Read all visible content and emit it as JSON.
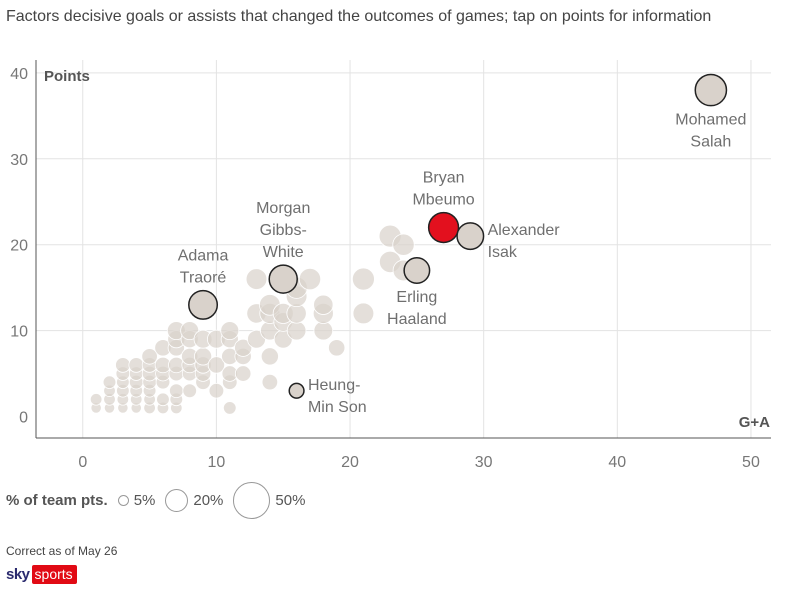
{
  "chart_data": {
    "type": "scatter",
    "subtitle": "Factors decisive goals or assists that changed the outcomes of games; tap on points for information",
    "xlabel": "G+A",
    "ylabel": "Points",
    "xlim": [
      -3.5,
      51.5
    ],
    "ylim": [
      -2.5,
      41.5
    ],
    "xticks": [
      0,
      10,
      20,
      30,
      40,
      50
    ],
    "yticks": [
      0,
      10,
      20,
      30,
      40
    ],
    "grid": true,
    "size_legend": {
      "title": "% of team pts.",
      "items": [
        {
          "label": "5%",
          "value": 5
        },
        {
          "label": "20%",
          "value": 20
        },
        {
          "label": "50%",
          "value": 50
        }
      ]
    },
    "highlighted": [
      {
        "name": "Mohamed Salah",
        "label_lines": [
          "Mohamed",
          "Salah"
        ],
        "x": 47,
        "y": 38,
        "pct": 36,
        "color": "#d9d2cb",
        "label_pos": "below"
      },
      {
        "name": "Bryan Mbeumo",
        "label_lines": [
          "Bryan",
          "Mbeumo"
        ],
        "x": 27,
        "y": 22,
        "pct": 33,
        "color": "#e3101e",
        "label_pos": "above"
      },
      {
        "name": "Alexander Isak",
        "label_lines": [
          "Alexander",
          "Isak"
        ],
        "x": 29,
        "y": 21,
        "pct": 26,
        "color": "#d9d2cb",
        "label_pos": "right"
      },
      {
        "name": "Erling Haaland",
        "label_lines": [
          "Erling",
          "Haaland"
        ],
        "x": 25,
        "y": 17,
        "pct": 24,
        "color": "#d9d2cb",
        "label_pos": "below"
      },
      {
        "name": "Morgan Gibbs-White",
        "label_lines": [
          "Morgan",
          "Gibbs-",
          "White"
        ],
        "x": 15,
        "y": 16,
        "pct": 29,
        "color": "#d9d2cb",
        "label_pos": "above"
      },
      {
        "name": "Adama Traoré",
        "label_lines": [
          "Adama",
          "Traoré"
        ],
        "x": 9,
        "y": 13,
        "pct": 30,
        "color": "#d9d2cb",
        "label_pos": "above"
      },
      {
        "name": "Heung-Min Son",
        "label_lines": [
          "Heung-",
          "Min Son"
        ],
        "x": 16,
        "y": 3,
        "pct": 8,
        "color": "#d9d2cb",
        "label_pos": "right"
      }
    ],
    "others": [
      [
        1,
        1,
        4
      ],
      [
        1,
        2,
        5
      ],
      [
        2,
        1,
        4
      ],
      [
        2,
        2,
        5
      ],
      [
        2,
        3,
        5
      ],
      [
        2,
        4,
        6
      ],
      [
        3,
        1,
        4
      ],
      [
        3,
        2,
        5
      ],
      [
        3,
        3,
        6
      ],
      [
        3,
        4,
        6
      ],
      [
        3,
        5,
        7
      ],
      [
        3,
        6,
        8
      ],
      [
        4,
        1,
        4
      ],
      [
        4,
        2,
        5
      ],
      [
        4,
        3,
        6
      ],
      [
        4,
        4,
        7
      ],
      [
        4,
        5,
        7
      ],
      [
        4,
        6,
        8
      ],
      [
        5,
        1,
        5
      ],
      [
        5,
        2,
        5
      ],
      [
        5,
        3,
        6
      ],
      [
        5,
        4,
        7
      ],
      [
        5,
        5,
        8
      ],
      [
        5,
        6,
        8
      ],
      [
        5,
        7,
        9
      ],
      [
        6,
        1,
        5
      ],
      [
        6,
        2,
        6
      ],
      [
        6,
        4,
        7
      ],
      [
        6,
        5,
        8
      ],
      [
        6,
        6,
        9
      ],
      [
        6,
        8,
        10
      ],
      [
        7,
        1,
        5
      ],
      [
        7,
        2,
        6
      ],
      [
        7,
        3,
        7
      ],
      [
        7,
        5,
        8
      ],
      [
        7,
        6,
        9
      ],
      [
        7,
        8,
        10
      ],
      [
        7,
        9,
        11
      ],
      [
        7,
        10,
        12
      ],
      [
        8,
        3,
        7
      ],
      [
        8,
        5,
        8
      ],
      [
        8,
        6,
        9
      ],
      [
        8,
        7,
        10
      ],
      [
        8,
        9,
        11
      ],
      [
        8,
        10,
        12
      ],
      [
        9,
        4,
        8
      ],
      [
        9,
        5,
        9
      ],
      [
        9,
        6,
        10
      ],
      [
        9,
        7,
        11
      ],
      [
        9,
        9,
        12
      ],
      [
        10,
        3,
        8
      ],
      [
        10,
        6,
        10
      ],
      [
        10,
        9,
        12
      ],
      [
        11,
        1,
        6
      ],
      [
        11,
        4,
        8
      ],
      [
        11,
        5,
        9
      ],
      [
        11,
        7,
        10
      ],
      [
        11,
        9,
        11
      ],
      [
        11,
        10,
        12
      ],
      [
        12,
        5,
        9
      ],
      [
        12,
        7,
        10
      ],
      [
        12,
        8,
        11
      ],
      [
        13,
        9,
        12
      ],
      [
        13,
        12,
        14
      ],
      [
        13,
        16,
        16
      ],
      [
        14,
        4,
        9
      ],
      [
        14,
        7,
        11
      ],
      [
        14,
        10,
        13
      ],
      [
        14,
        12,
        15
      ],
      [
        14,
        13,
        16
      ],
      [
        15,
        9,
        12
      ],
      [
        15,
        11,
        13
      ],
      [
        15,
        12,
        15
      ],
      [
        16,
        10,
        13
      ],
      [
        16,
        12,
        14
      ],
      [
        16,
        14,
        16
      ],
      [
        16,
        15,
        17
      ],
      [
        17,
        16,
        17
      ],
      [
        18,
        10,
        13
      ],
      [
        18,
        12,
        15
      ],
      [
        18,
        13,
        14
      ],
      [
        19,
        8,
        10
      ],
      [
        21,
        12,
        16
      ],
      [
        21,
        16,
        18
      ],
      [
        23,
        18,
        17
      ],
      [
        23,
        21,
        18
      ],
      [
        24,
        17,
        16
      ],
      [
        24,
        20,
        17
      ]
    ]
  }
}
